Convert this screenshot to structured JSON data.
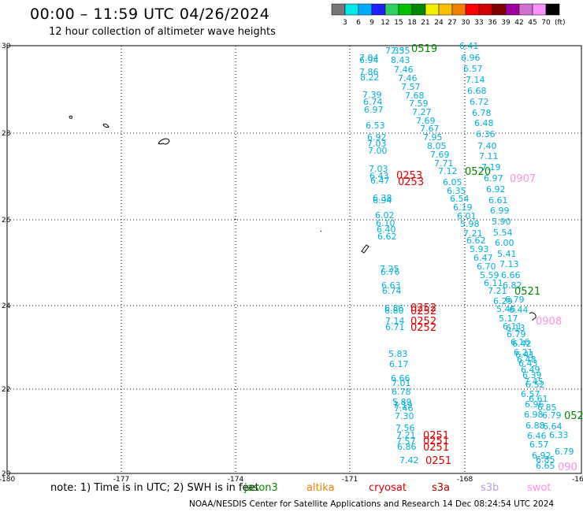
{
  "title": "00:00 – 11:59 UTC 04/26/2024",
  "subtitle": "12 hour collection of altimeter wave heights",
  "color_scale": {
    "unit": "(ft)",
    "bins": [
      {
        "label": "3",
        "color": "#777777"
      },
      {
        "label": "6",
        "color": "#00e8e8"
      },
      {
        "label": "9",
        "color": "#00a8ff"
      },
      {
        "label": "12",
        "color": "#2020ff"
      },
      {
        "label": "15",
        "color": "#30d060"
      },
      {
        "label": "18",
        "color": "#00c000"
      },
      {
        "label": "21",
        "color": "#008800"
      },
      {
        "label": "24",
        "color": "#f0f000"
      },
      {
        "label": "27",
        "color": "#f8c000"
      },
      {
        "label": "30",
        "color": "#f08000"
      },
      {
        "label": "33",
        "color": "#ff0000"
      },
      {
        "label": "36",
        "color": "#d00000"
      },
      {
        "label": "39",
        "color": "#800000"
      },
      {
        "label": "42",
        "color": "#a000a0"
      },
      {
        "label": "45",
        "color": "#d070d0"
      },
      {
        "label": "70",
        "color": "#ff90ff"
      },
      {
        "label": "",
        "color": "#000000"
      }
    ]
  },
  "axes": {
    "lon_ticks": [
      "-180",
      "-177",
      "-174",
      "-171",
      "-168",
      "-16"
    ],
    "lat_ticks": [
      "30",
      "28",
      "26",
      "24",
      "22",
      "20"
    ]
  },
  "note": "note:  1) Time is in UTC; 2) SWH is in feet",
  "satellites": [
    {
      "name": "jason3",
      "color": "#008800"
    },
    {
      "name": "altika",
      "color": "#f08000"
    },
    {
      "name": "cryosat",
      "color": "#e00000"
    },
    {
      "name": "s3a",
      "color": "#b00000"
    },
    {
      "name": "s3b",
      "color": "#b8a0e0"
    },
    {
      "name": "swot",
      "color": "#ff90e0"
    }
  ],
  "credit": "NOAA/NESDIS Center for Satellite Applications and Research    14 Dec 08:24:54 UTC 2024",
  "colors": {
    "swh": "#00b0d8",
    "jason3": "#008800",
    "cryosat": "#e00000",
    "swot": "#ff90e0"
  },
  "swh_labels": [
    "7.35",
    "7.35",
    "7.04",
    "6.94",
    "8.43",
    "7.46",
    "7.86",
    "8.22",
    "7.46",
    "7.57",
    "7.39",
    "7.68",
    "6.74",
    "7.59",
    "6.97",
    "7.27",
    "7.69",
    "6.53",
    "7.67",
    "6.92",
    "7.95",
    "7.03",
    "8.05",
    "7.00",
    "7.69",
    "7.71",
    "7.03",
    "7.12",
    "6.43",
    "6.47",
    "6.05",
    "6.35",
    "6.38",
    "6.94",
    "6.54",
    "6.19",
    "6.02",
    "6.01",
    "6.10",
    "5.98",
    "6.40",
    "7.21",
    "6.62",
    "6.62",
    "5.93",
    "6.47",
    "7.25",
    "6.70",
    "6.76",
    "5.59",
    "6.63",
    "6.11",
    "6.74",
    "7.21",
    "6.86",
    "6.80",
    "7.14",
    "6.71",
    "5.83",
    "6.17",
    "6.66",
    "7.01",
    "6.78",
    "5.89",
    "7.19",
    "7.46",
    "7.30",
    "7.56",
    "7.21",
    "7.57",
    "6.86",
    "7.42",
    "6.41",
    "6.96",
    "6.57",
    "7.14",
    "6.68",
    "6.72",
    "6.78",
    "6.48",
    "6.36",
    "7.40",
    "7.11",
    "7.19",
    "6.97",
    "6.92",
    "6.61",
    "6.99",
    "5.90",
    "5.54",
    "6.00",
    "5.41",
    "7.13",
    "6.66",
    "6.82",
    "6.29",
    "6.79",
    "5.46",
    "6.44",
    "5.17",
    "6.11",
    "6.13",
    "6.79",
    "6.16",
    "6.42",
    "6.21",
    "6.41",
    "6.48",
    "6.43",
    "6.49",
    "6.39",
    "7.45",
    "6.52",
    "6.57",
    "6.61",
    "6.96",
    "6.85",
    "6.98",
    "6.79",
    "6.88",
    "6.64",
    "6.46",
    "6.33",
    "6.57",
    "6.79",
    "6.92",
    "6.65",
    "6.85",
    "7.49",
    "6.81",
    "7.51"
  ],
  "time_labels_jason3": [
    "0519",
    "0520",
    "0521",
    "052"
  ],
  "time_labels_cryosat": [
    "0253",
    "0253",
    "0252",
    "0252",
    "0252",
    "0252",
    "0251",
    "0251",
    "0251",
    "0251"
  ],
  "time_labels_swot": [
    "0907",
    "0908",
    "090"
  ]
}
